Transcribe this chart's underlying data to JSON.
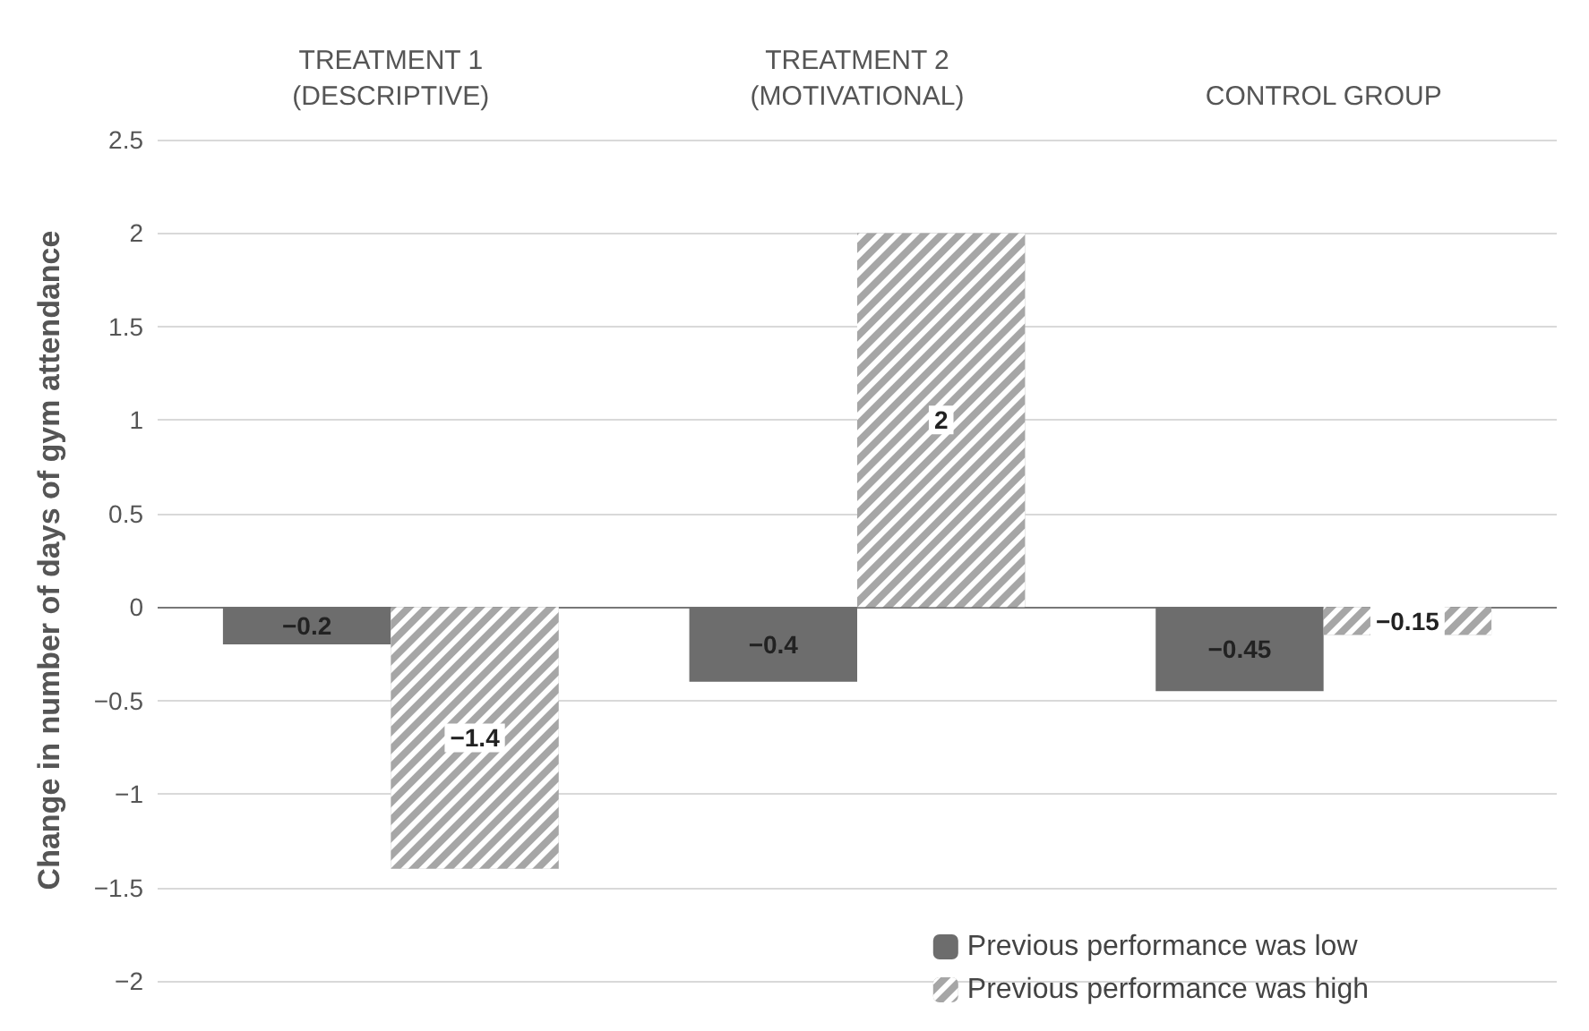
{
  "chart_data": {
    "type": "bar",
    "ylabel": "Change in number of days of gym attendance",
    "categories": [
      "TREATMENT 1\n(DESCRIPTIVE)",
      "TREATMENT 2\n(MOTIVATIONAL)",
      "CONTROL GROUP"
    ],
    "series": [
      {
        "name": "Previous performance was low",
        "color": "#6d6d6d",
        "values": [
          -0.2,
          -0.4,
          -0.45
        ],
        "value_labels": [
          "−0.2",
          "−0.4",
          "−0.45"
        ]
      },
      {
        "name": "Previous performance was high",
        "color": "#a6a6a6",
        "values": [
          -1.4,
          2,
          -0.15
        ],
        "value_labels": [
          "−1.4",
          "2",
          "−0.15"
        ]
      }
    ],
    "ylim": [
      -2,
      2.5
    ],
    "yticks": [
      {
        "value": -2,
        "label": "−2"
      },
      {
        "value": -1.5,
        "label": "−1.5"
      },
      {
        "value": -1,
        "label": "−1"
      },
      {
        "value": -0.5,
        "label": "−0.5"
      },
      0,
      0.5,
      1,
      1.5,
      2,
      2.5
    ],
    "grid": "y",
    "legend": "bottom right"
  }
}
